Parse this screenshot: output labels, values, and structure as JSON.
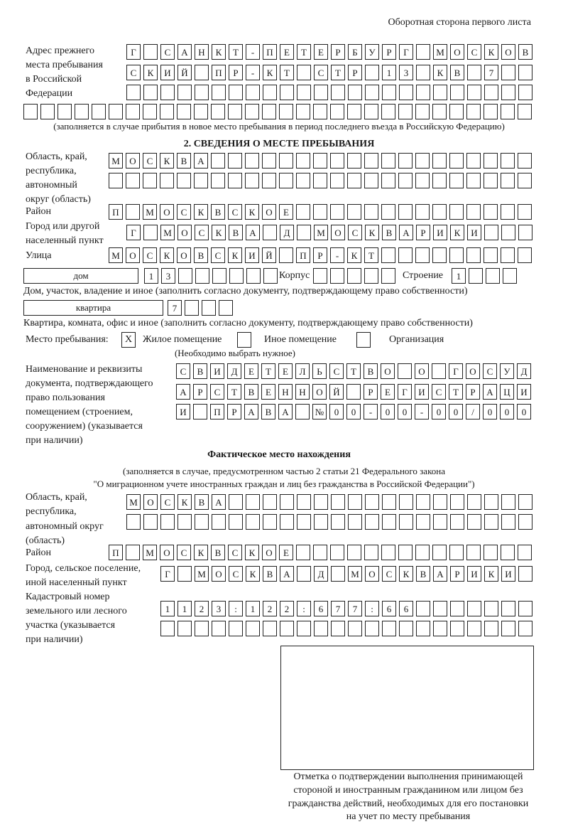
{
  "header": "Оборотная сторона первого листа",
  "prev_address": {
    "label": [
      "Адрес прежнего",
      "места пребывания",
      "в Российской",
      "Федерации"
    ],
    "rows": [
      [
        "Г",
        "",
        "С",
        "А",
        "Н",
        "К",
        "Т",
        "-",
        "П",
        "Е",
        "Т",
        "Е",
        "Р",
        "Б",
        "У",
        "Р",
        "Г",
        "",
        "М",
        "О",
        "С",
        "К",
        "О",
        "В"
      ],
      [
        "С",
        "К",
        "И",
        "Й",
        "",
        "П",
        "Р",
        "-",
        "К",
        "Т",
        "",
        "С",
        "Т",
        "Р",
        "",
        "1",
        "3",
        "",
        "К",
        "В",
        "",
        "7",
        "",
        ""
      ],
      [
        "",
        "",
        "",
        "",
        "",
        "",
        "",
        "",
        "",
        "",
        "",
        "",
        "",
        "",
        "",
        "",
        "",
        "",
        "",
        "",
        "",
        "",
        "",
        ""
      ],
      [
        "",
        "",
        "",
        "",
        "",
        "",
        "",
        "",
        "",
        "",
        "",
        "",
        "",
        "",
        "",
        "",
        "",
        "",
        "",
        "",
        "",
        "",
        "",
        "",
        "",
        "",
        "",
        "",
        "",
        ""
      ]
    ],
    "note": "(заполняется в случае прибытия в новое место пребывания в период последнего въезда в Российскую Федерацию)"
  },
  "section2": {
    "title": "2. СВЕДЕНИЯ О МЕСТЕ ПРЕБЫВАНИЯ",
    "region_label": [
      "Область, край,",
      "республика,",
      "автономный",
      "округ (область)"
    ],
    "region_rows": [
      [
        "М",
        "О",
        "С",
        "К",
        "В",
        "А",
        "",
        "",
        "",
        "",
        "",
        "",
        "",
        "",
        "",
        "",
        "",
        "",
        "",
        "",
        "",
        "",
        "",
        "",
        ""
      ],
      [
        "",
        "",
        "",
        "",
        "",
        "",
        "",
        "",
        "",
        "",
        "",
        "",
        "",
        "",
        "",
        "",
        "",
        "",
        "",
        "",
        "",
        "",
        "",
        "",
        ""
      ]
    ],
    "district_label": "Район",
    "district_row": [
      "П",
      "",
      "М",
      "О",
      "С",
      "К",
      "В",
      "С",
      "К",
      "О",
      "Е",
      "",
      "",
      "",
      "",
      "",
      "",
      "",
      "",
      "",
      "",
      "",
      "",
      "",
      ""
    ],
    "city_label": [
      "Город или другой",
      "населенный пункт"
    ],
    "city_row": [
      "Г",
      "",
      "М",
      "О",
      "С",
      "К",
      "В",
      "А",
      "",
      "Д",
      "",
      "М",
      "О",
      "С",
      "К",
      "В",
      "А",
      "Р",
      "И",
      "К",
      "И",
      "",
      "",
      ""
    ],
    "street_label": "Улица",
    "street_row": [
      "М",
      "О",
      "С",
      "К",
      "О",
      "В",
      "С",
      "К",
      "И",
      "Й",
      "",
      "П",
      "Р",
      "-",
      "К",
      "Т",
      "",
      "",
      "",
      "",
      "",
      "",
      "",
      "",
      ""
    ],
    "house_type": "дом",
    "house_cells": [
      "1",
      "3",
      "",
      "",
      "",
      "",
      "",
      ""
    ],
    "korpus_label": "Корпус",
    "korpus_cells": [
      "",
      "",
      "",
      "",
      ""
    ],
    "building_label": "Строение",
    "building_cells": [
      "1",
      "",
      "",
      ""
    ],
    "house_caption": "Дом, участок, владение и иное (заполнить согласно документу, подтверждающему право собственности)",
    "flat_type": "квартира",
    "flat_cells": [
      "7",
      "",
      "",
      ""
    ],
    "flat_caption": "Квартира, комната, офис и иное (заполнить согласно документу, подтверждающему право собственности)",
    "stay_label": "Место пребывания:",
    "stay_options": [
      {
        "label": "Жилое помещение",
        "mark": "Х"
      },
      {
        "label": "Иное помещение",
        "mark": ""
      },
      {
        "label": "Организация",
        "mark": ""
      }
    ],
    "stay_hint": "(Необходимо выбрать нужное)",
    "doc_label": [
      "Наименование и реквизиты",
      "документа, подтверждающего",
      "право пользования",
      "помещением (строением,",
      "сооружением) (указывается",
      "при наличии)"
    ],
    "doc_rows": [
      [
        "С",
        "В",
        "И",
        "Д",
        "Е",
        "Т",
        "Е",
        "Л",
        "Ь",
        "С",
        "Т",
        "В",
        "О",
        "",
        "О",
        "",
        "Г",
        "О",
        "С",
        "У",
        "Д"
      ],
      [
        "А",
        "Р",
        "С",
        "Т",
        "В",
        "Е",
        "Н",
        "Н",
        "О",
        "Й",
        "",
        "Р",
        "Е",
        "Г",
        "И",
        "С",
        "Т",
        "Р",
        "А",
        "Ц",
        "И"
      ],
      [
        "И",
        "",
        "П",
        "Р",
        "А",
        "В",
        "А",
        "",
        "№",
        "0",
        "0",
        "-",
        "0",
        "0",
        "-",
        "0",
        "0",
        "/",
        "0",
        "0",
        "0"
      ]
    ]
  },
  "actual": {
    "title": "Фактическое место нахождения",
    "note": [
      "(заполняется в случае, предусмотренном частью 2 статьи 21 Федерального закона",
      "\"О миграционном учете иностранных граждан и лиц без гражданства в Российской Федерации\")"
    ],
    "region_label": [
      "Область, край,",
      "республика,",
      "автономный округ",
      "(область)"
    ],
    "region_rows": [
      [
        "М",
        "О",
        "С",
        "К",
        "В",
        "А",
        "",
        "",
        "",
        "",
        "",
        "",
        "",
        "",
        "",
        "",
        "",
        "",
        "",
        "",
        "",
        "",
        "",
        ""
      ],
      [
        "",
        "",
        "",
        "",
        "",
        "",
        "",
        "",
        "",
        "",
        "",
        "",
        "",
        "",
        "",
        "",
        "",
        "",
        "",
        "",
        "",
        "",
        "",
        ""
      ]
    ],
    "district_label": "Район",
    "district_row": [
      "П",
      "",
      "М",
      "О",
      "С",
      "К",
      "В",
      "С",
      "К",
      "О",
      "Е",
      "",
      "",
      "",
      "",
      "",
      "",
      "",
      "",
      "",
      "",
      "",
      "",
      "",
      ""
    ],
    "city_label": [
      "Город, сельское поселение,",
      "иной населенный пункт"
    ],
    "city_row": [
      "Г",
      "",
      "М",
      "О",
      "С",
      "К",
      "В",
      "А",
      "",
      "Д",
      "",
      "М",
      "О",
      "С",
      "К",
      "В",
      "А",
      "Р",
      "И",
      "К",
      "И",
      ""
    ],
    "cadastral_label": [
      "Кадастровый номер",
      "земельного или лесного",
      "участка (указывается",
      "при наличии)"
    ],
    "cadastral_rows": [
      [
        "1",
        "1",
        "2",
        "3",
        ":",
        "1",
        "2",
        "2",
        ":",
        "6",
        "7",
        "7",
        ":",
        "6",
        "6",
        "",
        "",
        "",
        "",
        "",
        "",
        ""
      ],
      [
        "",
        "",
        "",
        "",
        "",
        "",
        "",
        "",
        "",
        "",
        "",
        "",
        "",
        "",
        "",
        "",
        "",
        "",
        "",
        "",
        "",
        ""
      ]
    ]
  },
  "stamp_caption": [
    "Отметка о подтверждении выполнения принимающей",
    "стороной и иностранным гражданином или лицом без",
    "гражданства действий, необходимых для его постановки",
    "на учет по месту пребывания"
  ]
}
